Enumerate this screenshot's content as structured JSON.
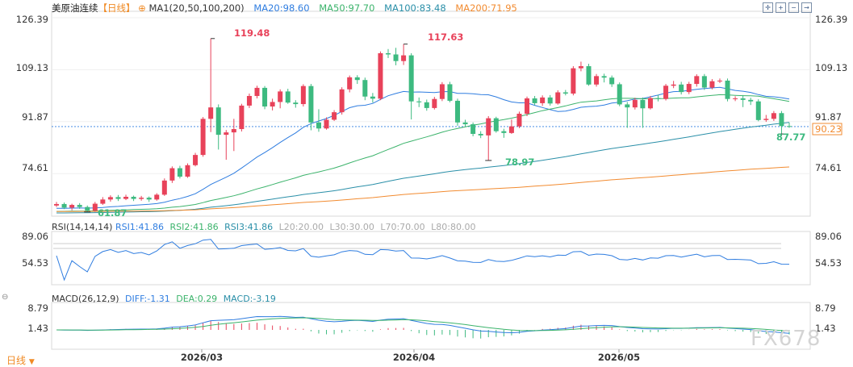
{
  "header": {
    "title": "美原油连续",
    "period": "【日线】",
    "add_symbol": "⊕",
    "ma_label": "MA1(20,50,100,200)",
    "ma20": "MA20:98.60",
    "ma50": "MA50:97.70",
    "ma100": "MA100:83.48",
    "ma200": "MA200:71.95"
  },
  "rsi_header": {
    "label": "RSI(14,14,14)",
    "rsi1": "RSI1:41.86",
    "rsi2": "RSI2:41.86",
    "rsi3": "RSI3:41.86",
    "l20": "L20:20.00",
    "l30": "L30:30.00",
    "l70": "L70:70.00",
    "l80": "L80:80.00"
  },
  "macd_header": {
    "label": "MACD(26,12,9)",
    "diff": "DIFF:-1.31",
    "dea": "DEA:0.29",
    "macd": "MACD:-3.19"
  },
  "footer_tab": "日线",
  "sub_marker": "⊖",
  "watermark": "FX678",
  "colors": {
    "up": "#e8425a",
    "down": "#3dba80",
    "ma20": "#2f7de0",
    "ma50": "#3bb36b",
    "ma100": "#2a8fa8",
    "ma200": "#f28b30",
    "last_price": "#f28b30"
  },
  "chart_data": {
    "type": "candlestick",
    "price_axis": {
      "ticks": [
        "126.39",
        "109.13",
        "91.87",
        "74.61"
      ],
      "range": [
        61.0,
        126.39
      ]
    },
    "x_ticks": [
      "2026/03",
      "2026/04",
      "2026/05"
    ],
    "last_price": "90.23",
    "annotations": {
      "high1": "119.48",
      "high2": "117.63",
      "low1": "61.87",
      "low2": "78.97",
      "low3": "87.77"
    },
    "rsi_axis": {
      "ticks": [
        "89.06",
        "54.53"
      ]
    },
    "macd_axis": {
      "ticks": [
        "8.79",
        "1.43"
      ]
    },
    "candles": [
      [
        64.0,
        64.5,
        65.2,
        63.5
      ],
      [
        64.5,
        63.3,
        65.0,
        62.8
      ],
      [
        63.3,
        64.2,
        64.6,
        62.4
      ],
      [
        64.2,
        63.5,
        64.8,
        62.9
      ],
      [
        63.5,
        62.3,
        64.0,
        61.87
      ],
      [
        62.3,
        64.6,
        65.2,
        61.9
      ],
      [
        64.6,
        66.0,
        66.8,
        64.2
      ],
      [
        66.0,
        66.8,
        67.4,
        65.3
      ],
      [
        66.8,
        66.2,
        67.5,
        65.5
      ],
      [
        66.2,
        66.9,
        67.6,
        65.8
      ],
      [
        66.9,
        66.2,
        67.3,
        65.5
      ],
      [
        66.2,
        66.6,
        67.2,
        65.6
      ],
      [
        66.6,
        66.0,
        67.0,
        65.2
      ],
      [
        66.0,
        67.6,
        68.1,
        65.6
      ],
      [
        67.6,
        72.3,
        73.0,
        67.2
      ],
      [
        72.3,
        76.4,
        77.0,
        71.5
      ],
      [
        76.4,
        73.6,
        77.2,
        73.0
      ],
      [
        73.6,
        77.4,
        78.0,
        73.2
      ],
      [
        77.4,
        80.8,
        81.5,
        77.0
      ],
      [
        80.8,
        92.8,
        93.4,
        80.2
      ],
      [
        92.8,
        96.6,
        119.48,
        88.4
      ],
      [
        96.6,
        87.5,
        97.6,
        82.6
      ],
      [
        87.5,
        88.3,
        89.1,
        79.2
      ],
      [
        88.3,
        89.4,
        92.8,
        82.1
      ],
      [
        89.4,
        97.2,
        97.8,
        88.6
      ],
      [
        97.2,
        100.4,
        101.2,
        96.4
      ],
      [
        100.4,
        103.1,
        103.8,
        99.6
      ],
      [
        103.1,
        96.9,
        103.7,
        96.0
      ],
      [
        96.9,
        98.4,
        99.5,
        95.6
      ],
      [
        98.4,
        101.9,
        102.6,
        96.3
      ],
      [
        101.9,
        98.2,
        102.8,
        97.8
      ],
      [
        98.2,
        97.7,
        99.0,
        96.5
      ],
      [
        97.7,
        103.7,
        104.3,
        96.9
      ],
      [
        103.7,
        91.6,
        104.4,
        89.0
      ],
      [
        91.6,
        89.6,
        96.0,
        88.5
      ],
      [
        89.6,
        92.5,
        93.3,
        89.2
      ],
      [
        92.5,
        95.0,
        95.7,
        92.1
      ],
      [
        95.0,
        102.6,
        103.3,
        94.2
      ],
      [
        102.6,
        106.6,
        107.2,
        101.6
      ],
      [
        106.6,
        105.7,
        107.3,
        104.4
      ],
      [
        105.7,
        100.2,
        106.5,
        99.0
      ],
      [
        100.2,
        99.5,
        101.4,
        98.2
      ],
      [
        99.5,
        114.6,
        115.2,
        99.0
      ],
      [
        114.6,
        114.2,
        116.0,
        113.0
      ],
      [
        114.2,
        112.0,
        116.4,
        110.6
      ],
      [
        112.0,
        113.9,
        117.63,
        110.7
      ],
      [
        113.9,
        98.6,
        114.6,
        92.6
      ],
      [
        98.6,
        98.3,
        99.9,
        96.7
      ],
      [
        98.3,
        96.4,
        99.2,
        95.5
      ],
      [
        96.4,
        99.4,
        100.1,
        95.9
      ],
      [
        99.4,
        104.3,
        105.0,
        98.7
      ],
      [
        104.3,
        98.8,
        105.1,
        98.3
      ],
      [
        98.8,
        91.6,
        99.5,
        90.5
      ],
      [
        91.6,
        91.0,
        92.5,
        90.3
      ],
      [
        91.0,
        87.8,
        91.6,
        87.0
      ],
      [
        87.8,
        87.3,
        88.7,
        86.4
      ],
      [
        87.3,
        93.0,
        93.7,
        78.97
      ],
      [
        93.0,
        88.7,
        93.5,
        88.2
      ],
      [
        88.7,
        88.1,
        89.5,
        86.5
      ],
      [
        88.1,
        90.3,
        92.6,
        87.8
      ],
      [
        90.3,
        94.5,
        95.2,
        89.7
      ],
      [
        94.5,
        99.6,
        100.2,
        93.7
      ],
      [
        99.6,
        98.0,
        100.4,
        97.3
      ],
      [
        98.0,
        99.9,
        100.6,
        97.1
      ],
      [
        99.9,
        97.9,
        100.7,
        97.2
      ],
      [
        97.9,
        101.6,
        102.3,
        97.5
      ],
      [
        101.6,
        101.2,
        102.4,
        100.6
      ],
      [
        101.2,
        109.6,
        110.3,
        100.6
      ],
      [
        109.6,
        110.3,
        111.8,
        108.6
      ],
      [
        110.3,
        104.2,
        111.1,
        103.8
      ],
      [
        104.2,
        107.0,
        107.7,
        103.5
      ],
      [
        107.0,
        106.5,
        107.8,
        104.9
      ],
      [
        106.5,
        104.3,
        107.2,
        103.4
      ],
      [
        104.3,
        97.6,
        104.9,
        97.0
      ],
      [
        97.6,
        96.6,
        98.4,
        89.8
      ],
      [
        96.6,
        99.1,
        99.8,
        95.9
      ],
      [
        99.1,
        96.3,
        99.9,
        89.8
      ],
      [
        96.3,
        99.7,
        100.4,
        95.9
      ],
      [
        99.7,
        99.4,
        100.8,
        98.6
      ],
      [
        99.4,
        103.8,
        104.4,
        98.9
      ],
      [
        103.8,
        104.2,
        105.4,
        103.0
      ],
      [
        104.2,
        101.7,
        105.1,
        100.9
      ],
      [
        101.7,
        104.4,
        105.1,
        101.0
      ],
      [
        104.4,
        107.0,
        107.6,
        103.5
      ],
      [
        107.0,
        103.2,
        107.7,
        102.4
      ],
      [
        103.2,
        105.3,
        106.0,
        102.6
      ],
      [
        105.3,
        105.5,
        106.2,
        104.7
      ],
      [
        105.5,
        99.4,
        106.2,
        98.6
      ],
      [
        99.4,
        99.6,
        100.3,
        98.7
      ],
      [
        99.6,
        99.1,
        100.7,
        96.7
      ],
      [
        99.1,
        98.6,
        99.8,
        97.4
      ],
      [
        98.6,
        92.4,
        99.3,
        92.0
      ],
      [
        92.4,
        92.8,
        94.1,
        91.8
      ],
      [
        92.8,
        94.7,
        95.4,
        92.1
      ],
      [
        94.7,
        90.4,
        95.4,
        87.77
      ],
      [
        90.4,
        90.23,
        91.6,
        89.8
      ]
    ]
  }
}
